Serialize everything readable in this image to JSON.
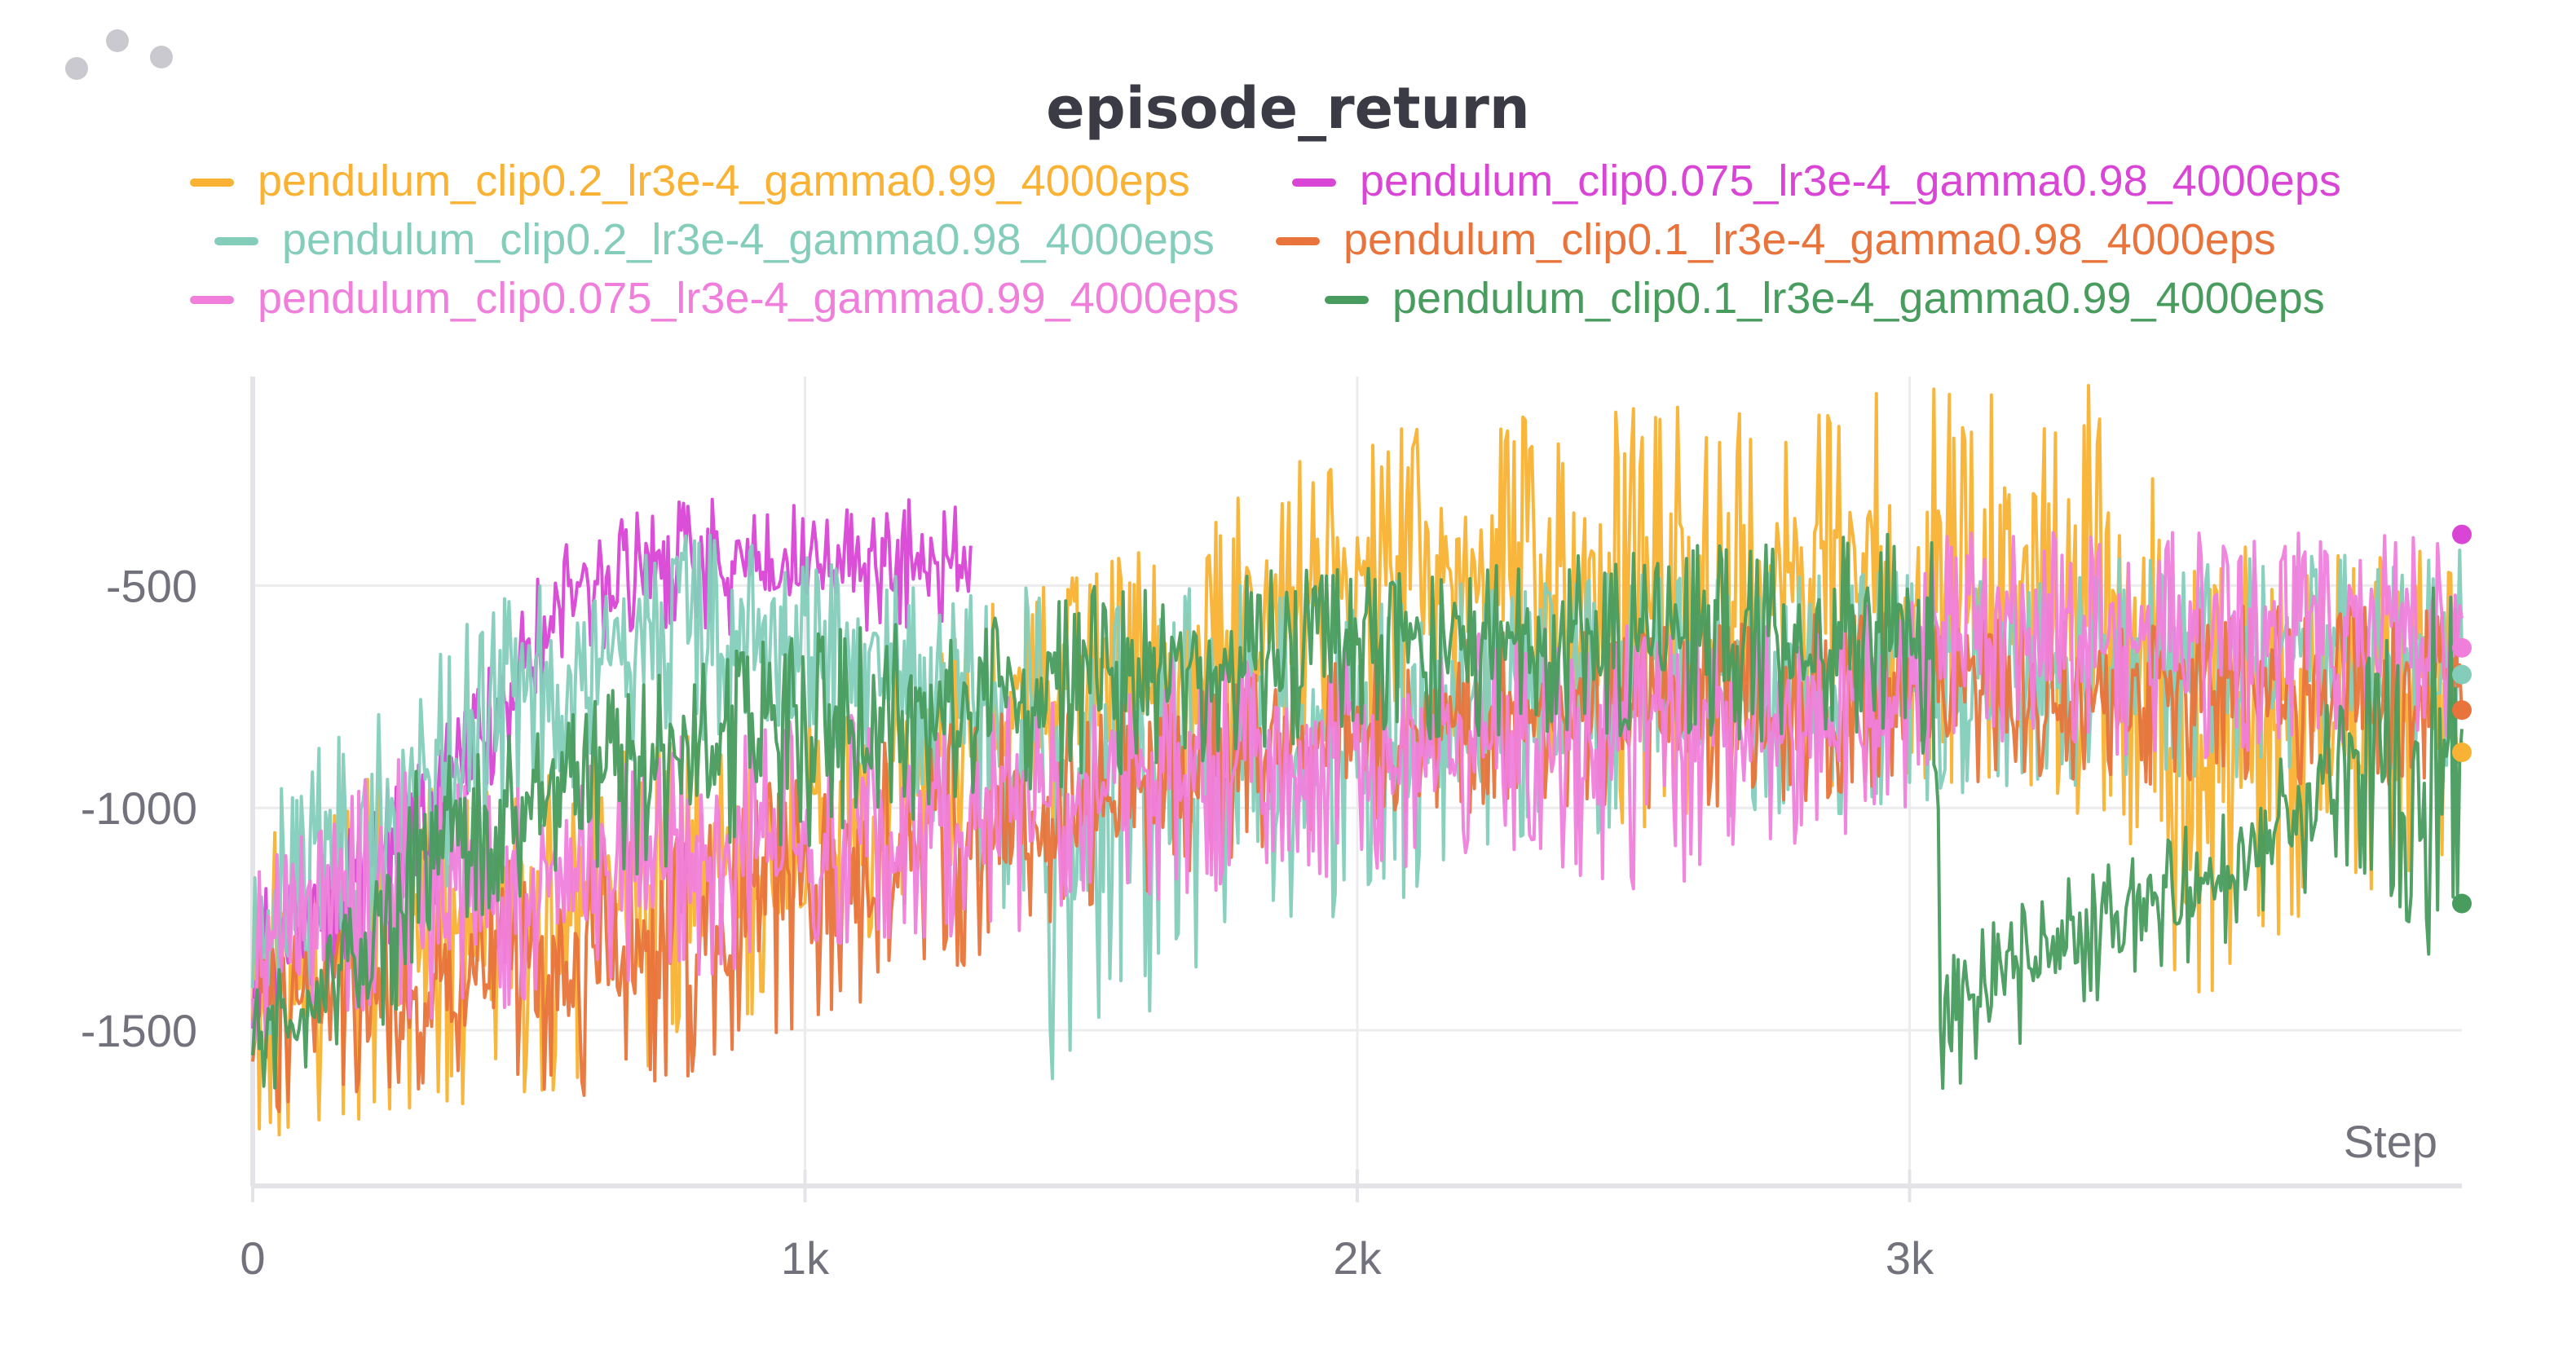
{
  "panel": {
    "title": "episode_return",
    "menu_icon": "ellipsis-icon"
  },
  "chart_data": {
    "type": "line",
    "title": "episode_return",
    "xlabel": "Step",
    "ylabel": "",
    "xlim": [
      0,
      4000
    ],
    "ylim": [
      -1850,
      -30
    ],
    "x_ticks": [
      0,
      1000,
      2000,
      3000
    ],
    "x_tick_labels": [
      "0",
      "1k",
      "2k",
      "3k"
    ],
    "y_ticks": [
      -500,
      -1000,
      -1500
    ],
    "y_tick_labels": [
      "-500",
      "-1000",
      "-1500"
    ],
    "grid": true,
    "legend": "top",
    "series": [
      {
        "name": "pendulum_clip0.2_lr3e-4_gamma0.99_4000eps",
        "color": "#f9b233",
        "x": [
          0,
          100,
          200,
          300,
          500,
          700,
          1000,
          1300,
          1500,
          1700,
          1800,
          2000,
          2200,
          2500,
          2800,
          3000,
          3200,
          3400,
          3500,
          3600,
          3800,
          4000
        ],
        "lower": [
          -1850,
          -1700,
          -1780,
          -1700,
          -1650,
          -1600,
          -1400,
          -1150,
          -1050,
          -1000,
          -950,
          -850,
          -850,
          -1050,
          -1000,
          -950,
          -950,
          -1100,
          -1570,
          -1350,
          -1250,
          -1150
        ],
        "upper": [
          -1000,
          -1000,
          -900,
          -950,
          -900,
          -850,
          -800,
          -550,
          -450,
          -400,
          -280,
          -150,
          -120,
          -100,
          -80,
          -60,
          -50,
          -50,
          -450,
          -400,
          -420,
          -400
        ],
        "last": -875
      },
      {
        "name": "pendulum_clip0.075_lr3e-4_gamma0.98_4000eps",
        "color": "#d946d6",
        "x": [
          0,
          300,
          550,
          600,
          800,
          1000,
          1200,
          1300
        ],
        "lower": [
          -1500,
          -1300,
          -680,
          -650,
          -620,
          -620,
          -620,
          -620
        ],
        "upper": [
          -1200,
          -900,
          -420,
          -380,
          -280,
          -320,
          -300,
          -300
        ],
        "last": -385
      },
      {
        "name": "pendulum_clip0.2_lr3e-4_gamma0.98_4000eps",
        "color": "#84cdbb",
        "x": [
          0,
          150,
          300,
          450,
          600,
          800,
          1000,
          1200,
          1400,
          1450,
          1500,
          1700,
          2000,
          2300,
          2600,
          3000,
          3200,
          3400,
          3700,
          4000
        ],
        "lower": [
          -1600,
          -1500,
          -1250,
          -1050,
          -950,
          -850,
          -850,
          -1000,
          -1300,
          -1670,
          -1550,
          -1400,
          -1250,
          -1100,
          -1050,
          -1000,
          -950,
          -950,
          -950,
          -900
        ],
        "upper": [
          -1000,
          -800,
          -700,
          -500,
          -380,
          -380,
          -420,
          -480,
          -500,
          -520,
          -520,
          -500,
          -480,
          -480,
          -470,
          -460,
          -450,
          -440,
          -430,
          -420
        ],
        "last": -700
      },
      {
        "name": "pendulum_clip0.1_lr3e-4_gamma0.98_4000eps",
        "color": "#e8743b",
        "x": [
          0,
          200,
          400,
          600,
          800,
          1000,
          1200,
          1400,
          1600,
          1800,
          2000,
          2300,
          2600,
          2900,
          3200,
          3500,
          3800,
          4000
        ],
        "lower": [
          -1700,
          -1650,
          -1650,
          -1650,
          -1600,
          -1500,
          -1400,
          -1300,
          -1200,
          -1100,
          -1050,
          -1000,
          -1000,
          -1000,
          -950,
          -950,
          -950,
          -950
        ],
        "upper": [
          -1300,
          -1250,
          -1150,
          -1050,
          -1000,
          -900,
          -820,
          -780,
          -750,
          -700,
          -650,
          -600,
          -580,
          -560,
          -550,
          -540,
          -540,
          -540
        ],
        "last": -780
      },
      {
        "name": "pendulum_clip0.075_lr3e-4_gamma0.99_4000eps",
        "color": "#f07fdc",
        "x": [
          0,
          250,
          300,
          500,
          700,
          1000,
          1300,
          1500,
          1700,
          2000,
          2300,
          2500,
          2800,
          3000,
          3050,
          3200,
          3500,
          3800,
          4000
        ],
        "lower": [
          -1550,
          -1450,
          -1500,
          -1450,
          -1400,
          -1350,
          -1300,
          -1250,
          -1200,
          -1150,
          -1100,
          -1200,
          -1100,
          -1000,
          -900,
          -850,
          -900,
          -850,
          -850
        ],
        "upper": [
          -1150,
          -850,
          -950,
          -900,
          -850,
          -800,
          -750,
          -700,
          -650,
          -620,
          -600,
          -580,
          -560,
          -520,
          -380,
          -380,
          -380,
          -380,
          -380
        ],
        "last": -640
      },
      {
        "name": "pendulum_clip0.1_lr3e-4_gamma0.99_4000eps",
        "color": "#489c5e",
        "x": [
          0,
          100,
          200,
          250,
          300,
          500,
          700,
          1000,
          1300,
          1500,
          1700,
          2000,
          2300,
          2600,
          2900,
          3000,
          3040,
          3060,
          3200,
          3400,
          3600,
          3800,
          3950,
          4000
        ],
        "lower": [
          -1650,
          -1600,
          -1550,
          -1500,
          -1300,
          -1200,
          -1150,
          -1100,
          -1000,
          -950,
          -900,
          -850,
          -850,
          -850,
          -850,
          -850,
          -900,
          -1650,
          -1550,
          -1400,
          -1300,
          -1150,
          -1350,
          -1200
        ],
        "upper": [
          -1400,
          -1300,
          -1200,
          -1100,
          -900,
          -800,
          -700,
          -600,
          -550,
          -500,
          -480,
          -450,
          -420,
          -400,
          -380,
          -380,
          -400,
          -1350,
          -1200,
          -1100,
          -950,
          -700,
          -500,
          -480
        ],
        "last": -1215
      }
    ]
  }
}
